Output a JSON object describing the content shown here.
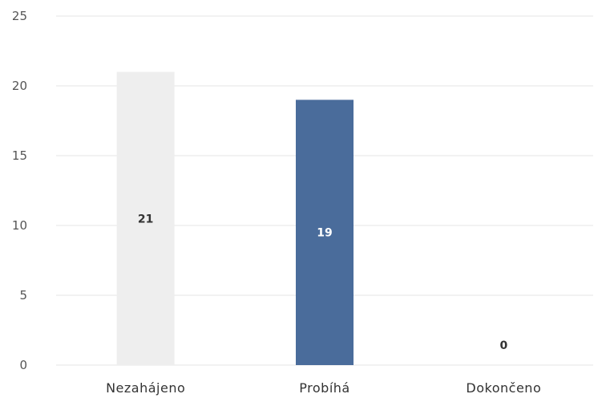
{
  "chart_data": {
    "type": "bar",
    "title": "",
    "xlabel": "",
    "ylabel": "",
    "categories": [
      "Nezahájeno",
      "Probíhá",
      "Dokončeno"
    ],
    "values": [
      21,
      19,
      0
    ],
    "value_labels": [
      "21",
      "19",
      "0"
    ],
    "ylim": [
      0,
      25
    ],
    "yticks": [
      0,
      5,
      10,
      15,
      20,
      25
    ],
    "grid": true,
    "legend": "none",
    "colors": {
      "bars": [
        "#eeeeee",
        "#4a6c9b",
        "#4a6c9b"
      ],
      "value_label_text": [
        "#333333",
        "#ffffff",
        "#333333"
      ],
      "grid": "#e6e6e6"
    }
  }
}
